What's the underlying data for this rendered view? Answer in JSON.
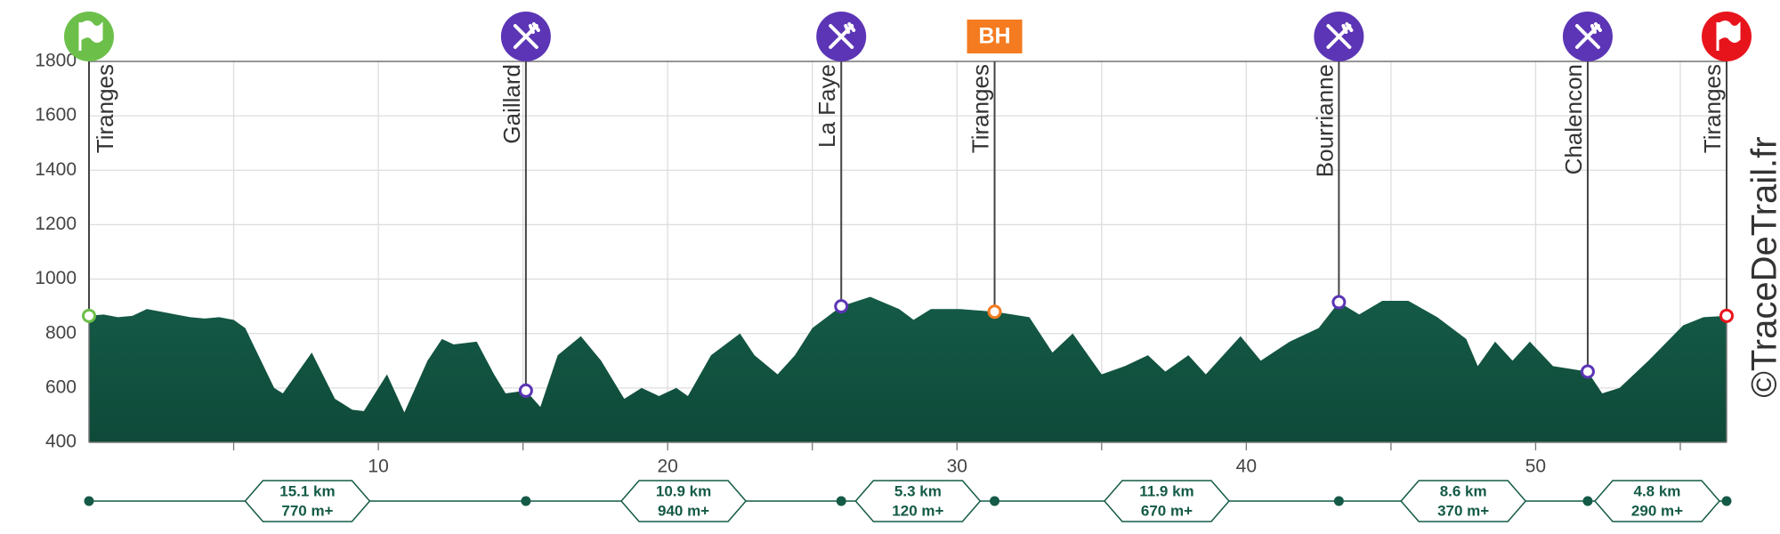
{
  "chart_data": {
    "type": "area",
    "color": "#145a46",
    "xlim": [
      0,
      56.6
    ],
    "xticks": [
      10,
      20,
      30,
      40,
      50
    ],
    "xminorticks": [
      5,
      15,
      25,
      35,
      45,
      55
    ],
    "ylim": [
      400,
      1800
    ],
    "yticks": [
      400,
      600,
      800,
      1000,
      1200,
      1400,
      1600,
      1800
    ],
    "grid": true,
    "x": [
      0,
      0.5,
      1,
      1.5,
      2,
      2.5,
      3,
      3.5,
      4,
      4.5,
      5,
      5.4,
      6.4,
      6.7,
      7.7,
      8.5,
      9.1,
      9.5,
      10.3,
      10.9,
      11.7,
      12.2,
      12.6,
      13.4,
      14,
      14.4,
      15.1,
      15.6,
      16.2,
      17,
      17.7,
      18.5,
      19.1,
      19.7,
      20.3,
      20.7,
      21.5,
      22.5,
      23,
      23.8,
      24.4,
      25,
      26,
      27,
      28,
      28.5,
      29.1,
      30.1,
      31.3,
      32.5,
      33.3,
      34,
      35,
      35.8,
      36.6,
      37.2,
      38,
      38.6,
      39.8,
      40.5,
      41.5,
      42.5,
      43.2,
      43.9,
      44.7,
      45.6,
      46.6,
      47.6,
      48,
      48.6,
      49.2,
      49.8,
      50.6,
      51.8,
      52.3,
      52.9,
      53.9,
      55.1,
      55.8,
      56.6
    ],
    "values": [
      865,
      870,
      860,
      865,
      890,
      880,
      870,
      860,
      855,
      860,
      850,
      820,
      600,
      580,
      730,
      560,
      520,
      515,
      650,
      510,
      700,
      780,
      760,
      770,
      650,
      580,
      590,
      530,
      720,
      790,
      700,
      560,
      600,
      570,
      600,
      570,
      720,
      800,
      720,
      650,
      720,
      820,
      900,
      935,
      890,
      850,
      890,
      890,
      880,
      860,
      730,
      800,
      650,
      680,
      720,
      660,
      720,
      650,
      790,
      700,
      770,
      820,
      915,
      870,
      920,
      920,
      860,
      780,
      680,
      770,
      700,
      770,
      680,
      660,
      580,
      600,
      700,
      830,
      860,
      865
    ],
    "waypoints": [
      {
        "name": "Tiranges",
        "km": 0,
        "elevation": 865,
        "icon": "start"
      },
      {
        "name": "Gaillard",
        "km": 15.1,
        "elevation": 590,
        "icon": "food"
      },
      {
        "name": "La Faye",
        "km": 26,
        "elevation": 900,
        "icon": "food"
      },
      {
        "name": "Tiranges",
        "km": 31.3,
        "elevation": 880,
        "icon": "base",
        "badge": "BH"
      },
      {
        "name": "Bourrianne",
        "km": 43.2,
        "elevation": 915,
        "icon": "food"
      },
      {
        "name": "Chalencon",
        "km": 51.8,
        "elevation": 660,
        "icon": "food"
      },
      {
        "name": "Tiranges",
        "km": 56.6,
        "elevation": 865,
        "icon": "finish"
      }
    ],
    "segments": [
      {
        "distance": "15.1 km",
        "gain": "770 m+"
      },
      {
        "distance": "10.9 km",
        "gain": "940 m+"
      },
      {
        "distance": "5.3 km",
        "gain": "120 m+"
      },
      {
        "distance": "11.9 km",
        "gain": "670 m+"
      },
      {
        "distance": "8.6 km",
        "gain": "370 m+"
      },
      {
        "distance": "4.8 km",
        "gain": "290 m+"
      }
    ],
    "icon_colors": {
      "start": "#6cc04a",
      "food": "#5b35b5",
      "base": "#f47b20",
      "finish": "#e8141c"
    },
    "watermark": "©TraceDeTrail.fr"
  }
}
